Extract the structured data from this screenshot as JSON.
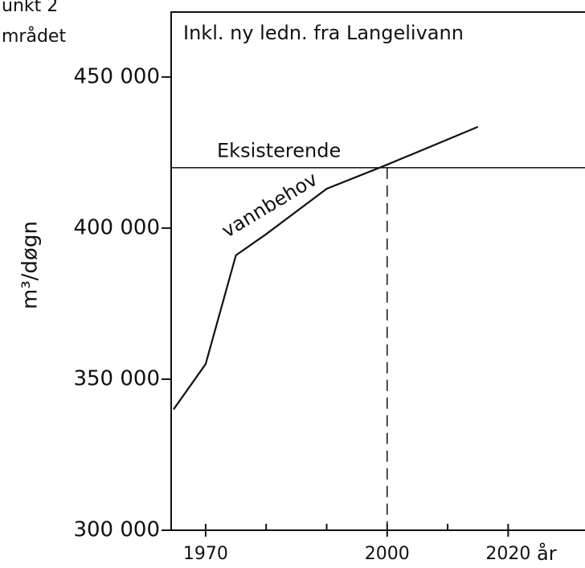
{
  "chart_data": {
    "type": "line",
    "header_fragments": [
      "unkt 2",
      "mrådet"
    ],
    "box_label": "Inkl. ny ledn. fra Langelivann",
    "y_label": "m³/døgn",
    "x_label": "år",
    "x": [
      1964.7,
      1970,
      1975,
      1980,
      1990,
      2000,
      2015
    ],
    "series": [
      {
        "name": "vannbehov",
        "color": "#111111",
        "values": [
          340000,
          355000,
          391000,
          398000,
          413000,
          421000,
          433500
        ]
      }
    ],
    "reference_line": {
      "label": "Eksisterende",
      "value": 420000
    },
    "marker_x": 2000,
    "xlim": [
      1964.3,
      2032.7
    ],
    "xticks": [
      1970,
      2000,
      2020
    ],
    "minor_xticks": [
      1980,
      1990,
      2010
    ],
    "ylim": [
      300000,
      471500
    ],
    "yticks": [
      {
        "value": 300000,
        "label": "300 000"
      },
      {
        "value": 350000,
        "label": "350 000"
      },
      {
        "value": 400000,
        "label": "400 000"
      },
      {
        "value": 450000,
        "label": "450 000"
      }
    ]
  }
}
